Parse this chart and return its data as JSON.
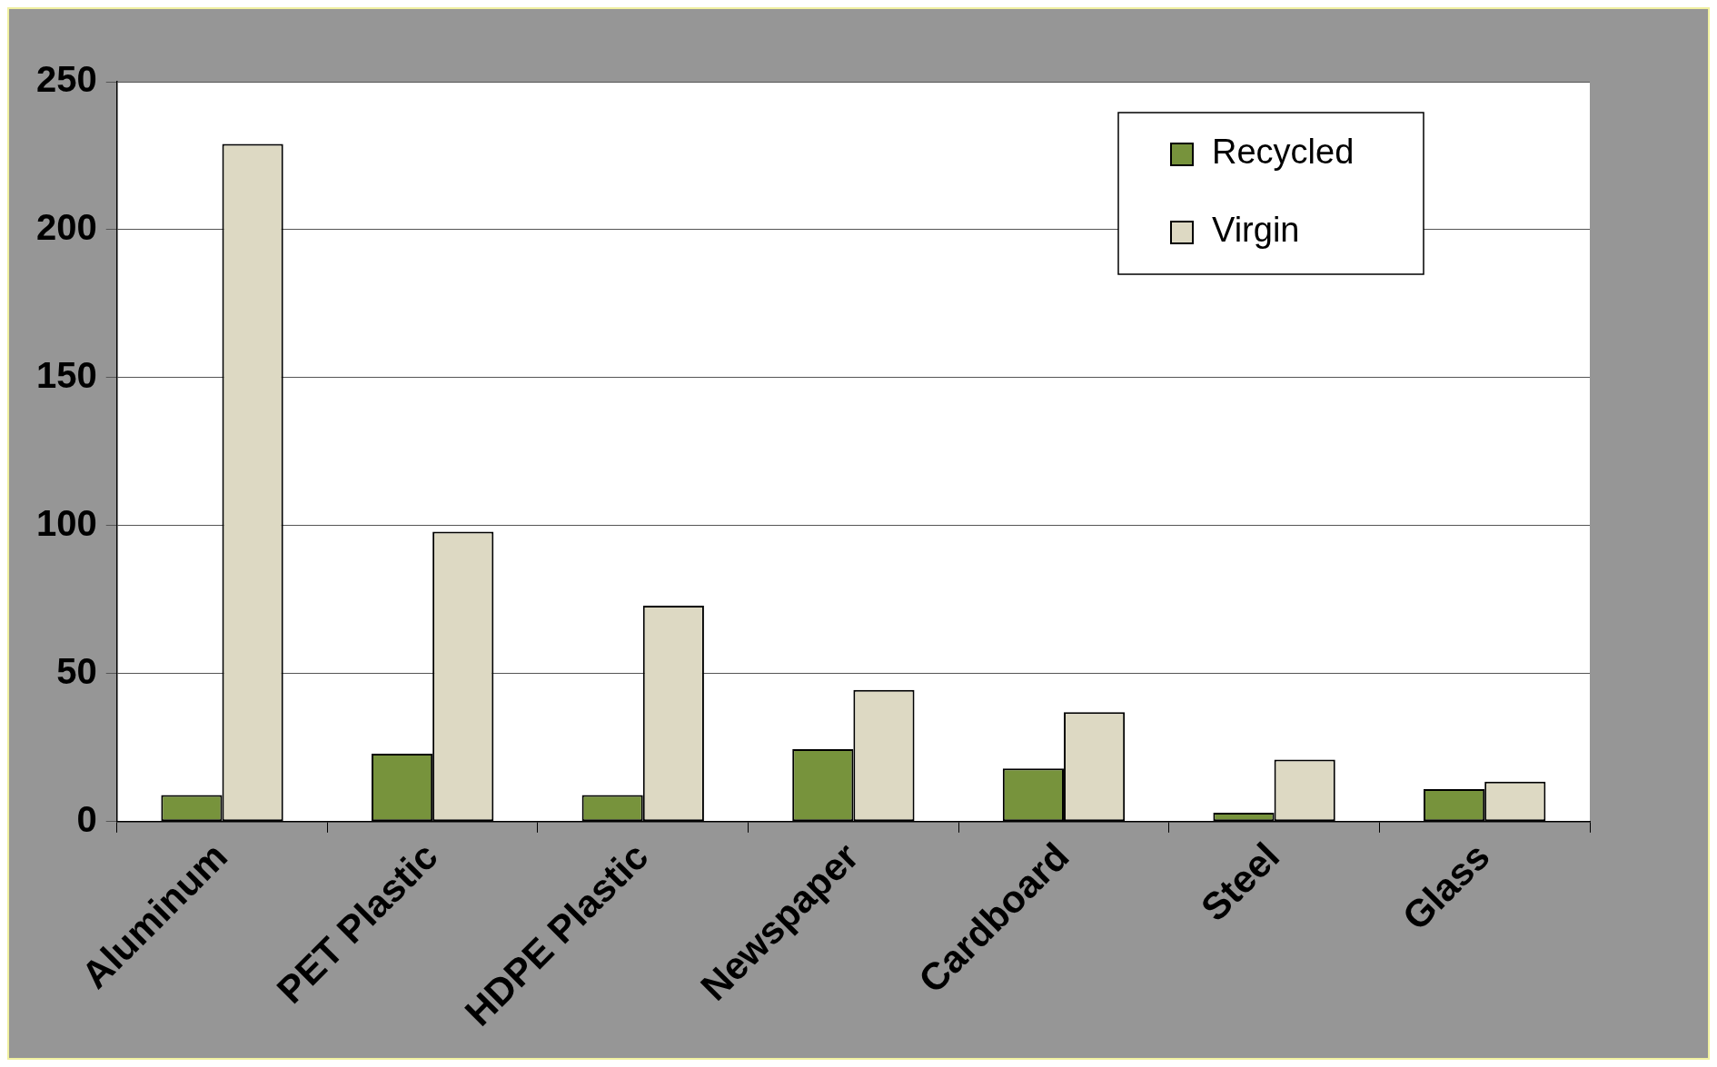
{
  "chart_data": {
    "type": "bar",
    "categories": [
      "Aluminum",
      "PET Plastic",
      "HDPE Plastic",
      "Newspaper",
      "Cardboard",
      "Steel",
      "Glass"
    ],
    "series": [
      {
        "name": "Recycled",
        "color": "#77933c",
        "values": [
          9,
          23,
          9,
          24.5,
          18,
          3,
          11
        ]
      },
      {
        "name": "Virgin",
        "color": "#ddd9c3",
        "values": [
          229,
          98,
          73,
          44.5,
          37,
          21,
          13.5
        ]
      }
    ],
    "ylim": [
      0,
      250
    ],
    "yticks": [
      0,
      50,
      100,
      150,
      200,
      250
    ],
    "grid": "y",
    "legend": "top right"
  }
}
